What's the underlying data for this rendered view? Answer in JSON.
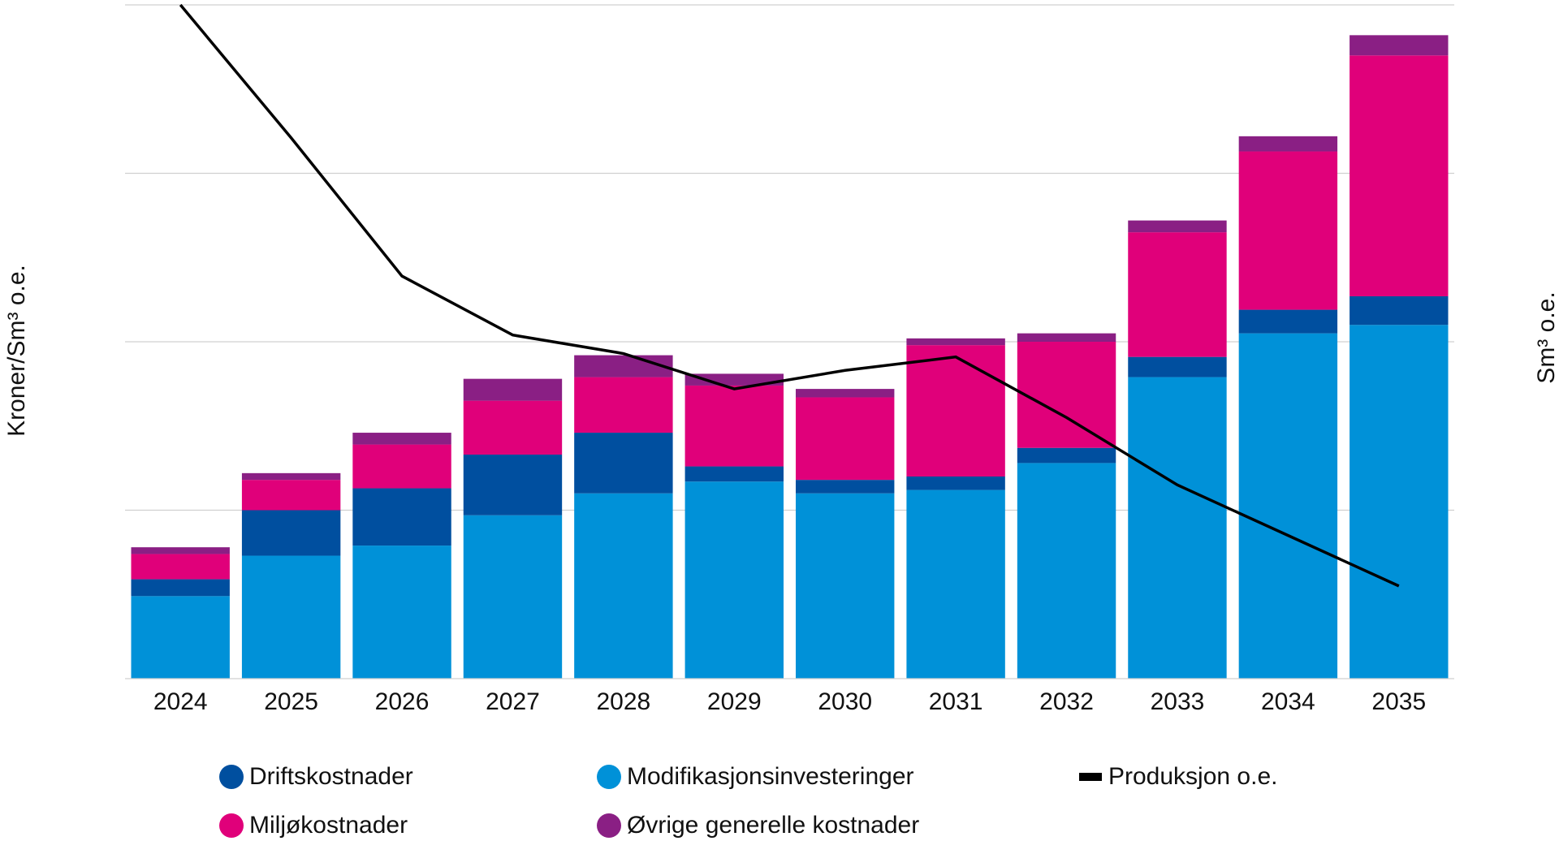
{
  "chart_data": {
    "type": "bar",
    "y_label": "Kroner/Sm³ o.e.",
    "y2_label": "Sm³ o.e.",
    "categories": [
      "2024",
      "2025",
      "2026",
      "2027",
      "2028",
      "2029",
      "2030",
      "2031",
      "2032",
      "2033",
      "2034",
      "2035"
    ],
    "stacked": true,
    "series": [
      {
        "name": "Modifikasjonsinvesteringer",
        "color": "#0091d8",
        "values": [
          0.49,
          0.73,
          0.79,
          0.97,
          1.1,
          1.17,
          1.1,
          1.12,
          1.28,
          1.79,
          2.05,
          2.1
        ]
      },
      {
        "name": "Driftskostnader",
        "color": "#004f9f",
        "values": [
          0.1,
          0.27,
          0.34,
          0.36,
          0.36,
          0.09,
          0.08,
          0.08,
          0.09,
          0.12,
          0.14,
          0.17
        ]
      },
      {
        "name": "Miljøkostnader",
        "color": "#e0007a",
        "values": [
          0.15,
          0.18,
          0.26,
          0.32,
          0.33,
          0.48,
          0.49,
          0.78,
          0.63,
          0.74,
          0.94,
          1.43
        ]
      },
      {
        "name": "Øvrige generelle kostnader",
        "color": "#8a1f84",
        "values": [
          0.04,
          0.04,
          0.07,
          0.13,
          0.13,
          0.07,
          0.05,
          0.04,
          0.05,
          0.07,
          0.09,
          0.12
        ]
      },
      {
        "name": "Produksjon o.e.",
        "color": "#000000",
        "type": "line",
        "axis": "y2",
        "values": [
          4.0,
          3.21,
          2.39,
          2.04,
          1.93,
          1.72,
          1.83,
          1.91,
          1.55,
          1.15,
          0.85,
          0.55
        ]
      }
    ],
    "ylim": [
      0,
      4
    ],
    "y2lim": [
      0,
      4
    ],
    "grid": true,
    "grid_lines": [
      1,
      2,
      3,
      4
    ],
    "legend": "bottom"
  }
}
